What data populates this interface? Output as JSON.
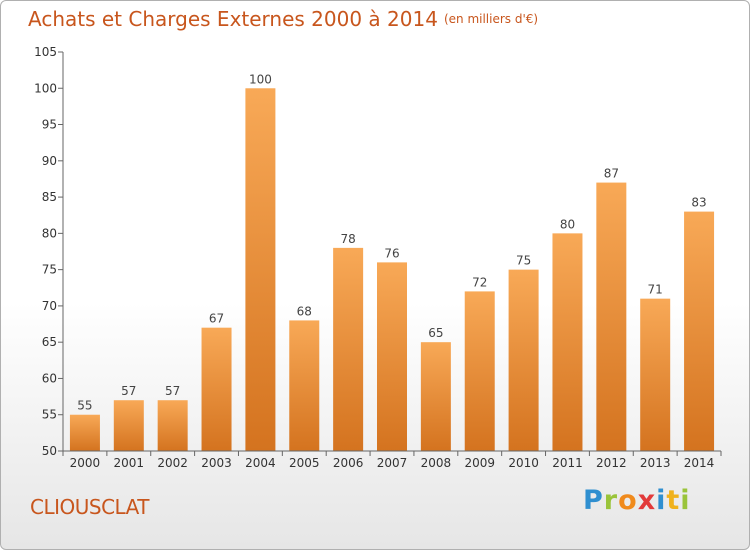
{
  "title": "Achats et Charges Externes 2000 à 2014",
  "unit": "(en milliers d'€)",
  "commune": "CLIOUSCLAT",
  "logo": {
    "letters": [
      "P",
      "r",
      "o",
      "x",
      "i",
      "t",
      "i"
    ],
    "colors": [
      "#2f8fd0",
      "#9ac43a",
      "#f08a1c",
      "#e23a3a",
      "#2f8fd0",
      "#f0b21c",
      "#9ac43a"
    ]
  },
  "colors": {
    "bar_light": "#f8a957",
    "bar_dark": "#d4731f",
    "title": "#c8561d"
  },
  "chart_data": {
    "type": "bar",
    "categories": [
      "2000",
      "2001",
      "2002",
      "2003",
      "2004",
      "2005",
      "2006",
      "2007",
      "2008",
      "2009",
      "2010",
      "2011",
      "2012",
      "2013",
      "2014"
    ],
    "values": [
      55,
      57,
      57,
      67,
      100,
      68,
      78,
      76,
      65,
      72,
      75,
      80,
      87,
      71,
      83
    ],
    "ylim": [
      50,
      105
    ],
    "yticks": [
      50,
      55,
      60,
      65,
      70,
      75,
      80,
      85,
      90,
      95,
      100,
      105
    ],
    "grid": false,
    "title": "Achats et Charges Externes 2000 à 2014",
    "xlabel": "",
    "ylabel": ""
  }
}
